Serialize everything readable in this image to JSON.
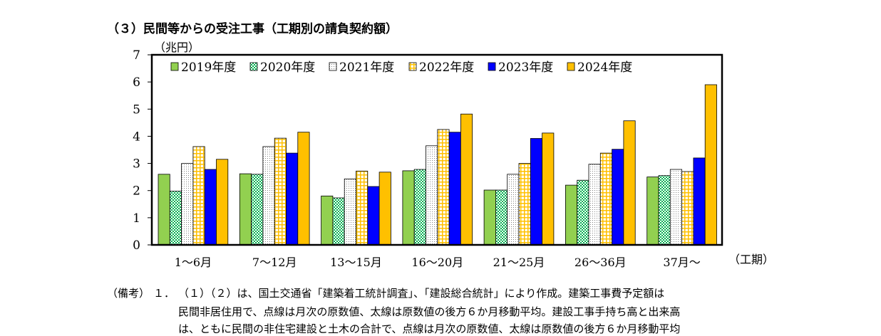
{
  "header": {
    "title": "（３）民間等からの受注工事（工期別の請負契約額）"
  },
  "chart_data": {
    "type": "bar",
    "ylabel": "（兆円）",
    "xlabel": "（工期）",
    "ylim": [
      0,
      7
    ],
    "yticks": [
      "0",
      "1",
      "2",
      "3",
      "4",
      "5",
      "6",
      "7"
    ],
    "grid": false,
    "legend_position": "top-left inside",
    "categories": [
      "1～6月",
      "7～12月",
      "13～15月",
      "16～20月",
      "21～25月",
      "26～36月",
      "37月～"
    ],
    "series": [
      {
        "name": "2019年度",
        "color": "#92D050",
        "pattern": "solid",
        "values": [
          2.6,
          2.62,
          1.8,
          2.73,
          2.02,
          2.2,
          2.5
        ]
      },
      {
        "name": "2020年度",
        "color": "#00B050",
        "pattern": "dots",
        "values": [
          1.98,
          2.6,
          1.73,
          2.78,
          2.02,
          2.38,
          2.55
        ]
      },
      {
        "name": "2021年度",
        "color": "#C4C4C4",
        "pattern": "fine-dots",
        "values": [
          3.0,
          3.62,
          2.43,
          3.65,
          2.6,
          2.97,
          2.78
        ]
      },
      {
        "name": "2022年度",
        "color": "#FFC000",
        "pattern": "grid",
        "values": [
          3.62,
          3.93,
          2.72,
          4.25,
          3.0,
          3.38,
          2.7
        ]
      },
      {
        "name": "2023年度",
        "color": "#0000FF",
        "pattern": "solid",
        "values": [
          2.78,
          3.38,
          2.15,
          4.15,
          3.92,
          3.52,
          3.2
        ]
      },
      {
        "name": "2024年度",
        "color": "#FFC000",
        "pattern": "solid",
        "values": [
          3.15,
          4.15,
          2.68,
          4.82,
          4.12,
          4.57,
          5.9
        ]
      }
    ]
  },
  "notes": {
    "label": "（備考）",
    "number": "１．",
    "line1": "（１）（２）は、国土交通省「建築着工統計調査」、「建設総合統計」により作成。建築工事費予定額は",
    "line2": "民間非居住用で、点線は月次の原数値、太線は原数値の後方６か月移動平均。建設工事手持ち高と出来高",
    "line3": "は、ともに民間の非住宅建設と土木の合計で、点線は月次の原数値、太線は原数値の後方６か月移動平均"
  }
}
